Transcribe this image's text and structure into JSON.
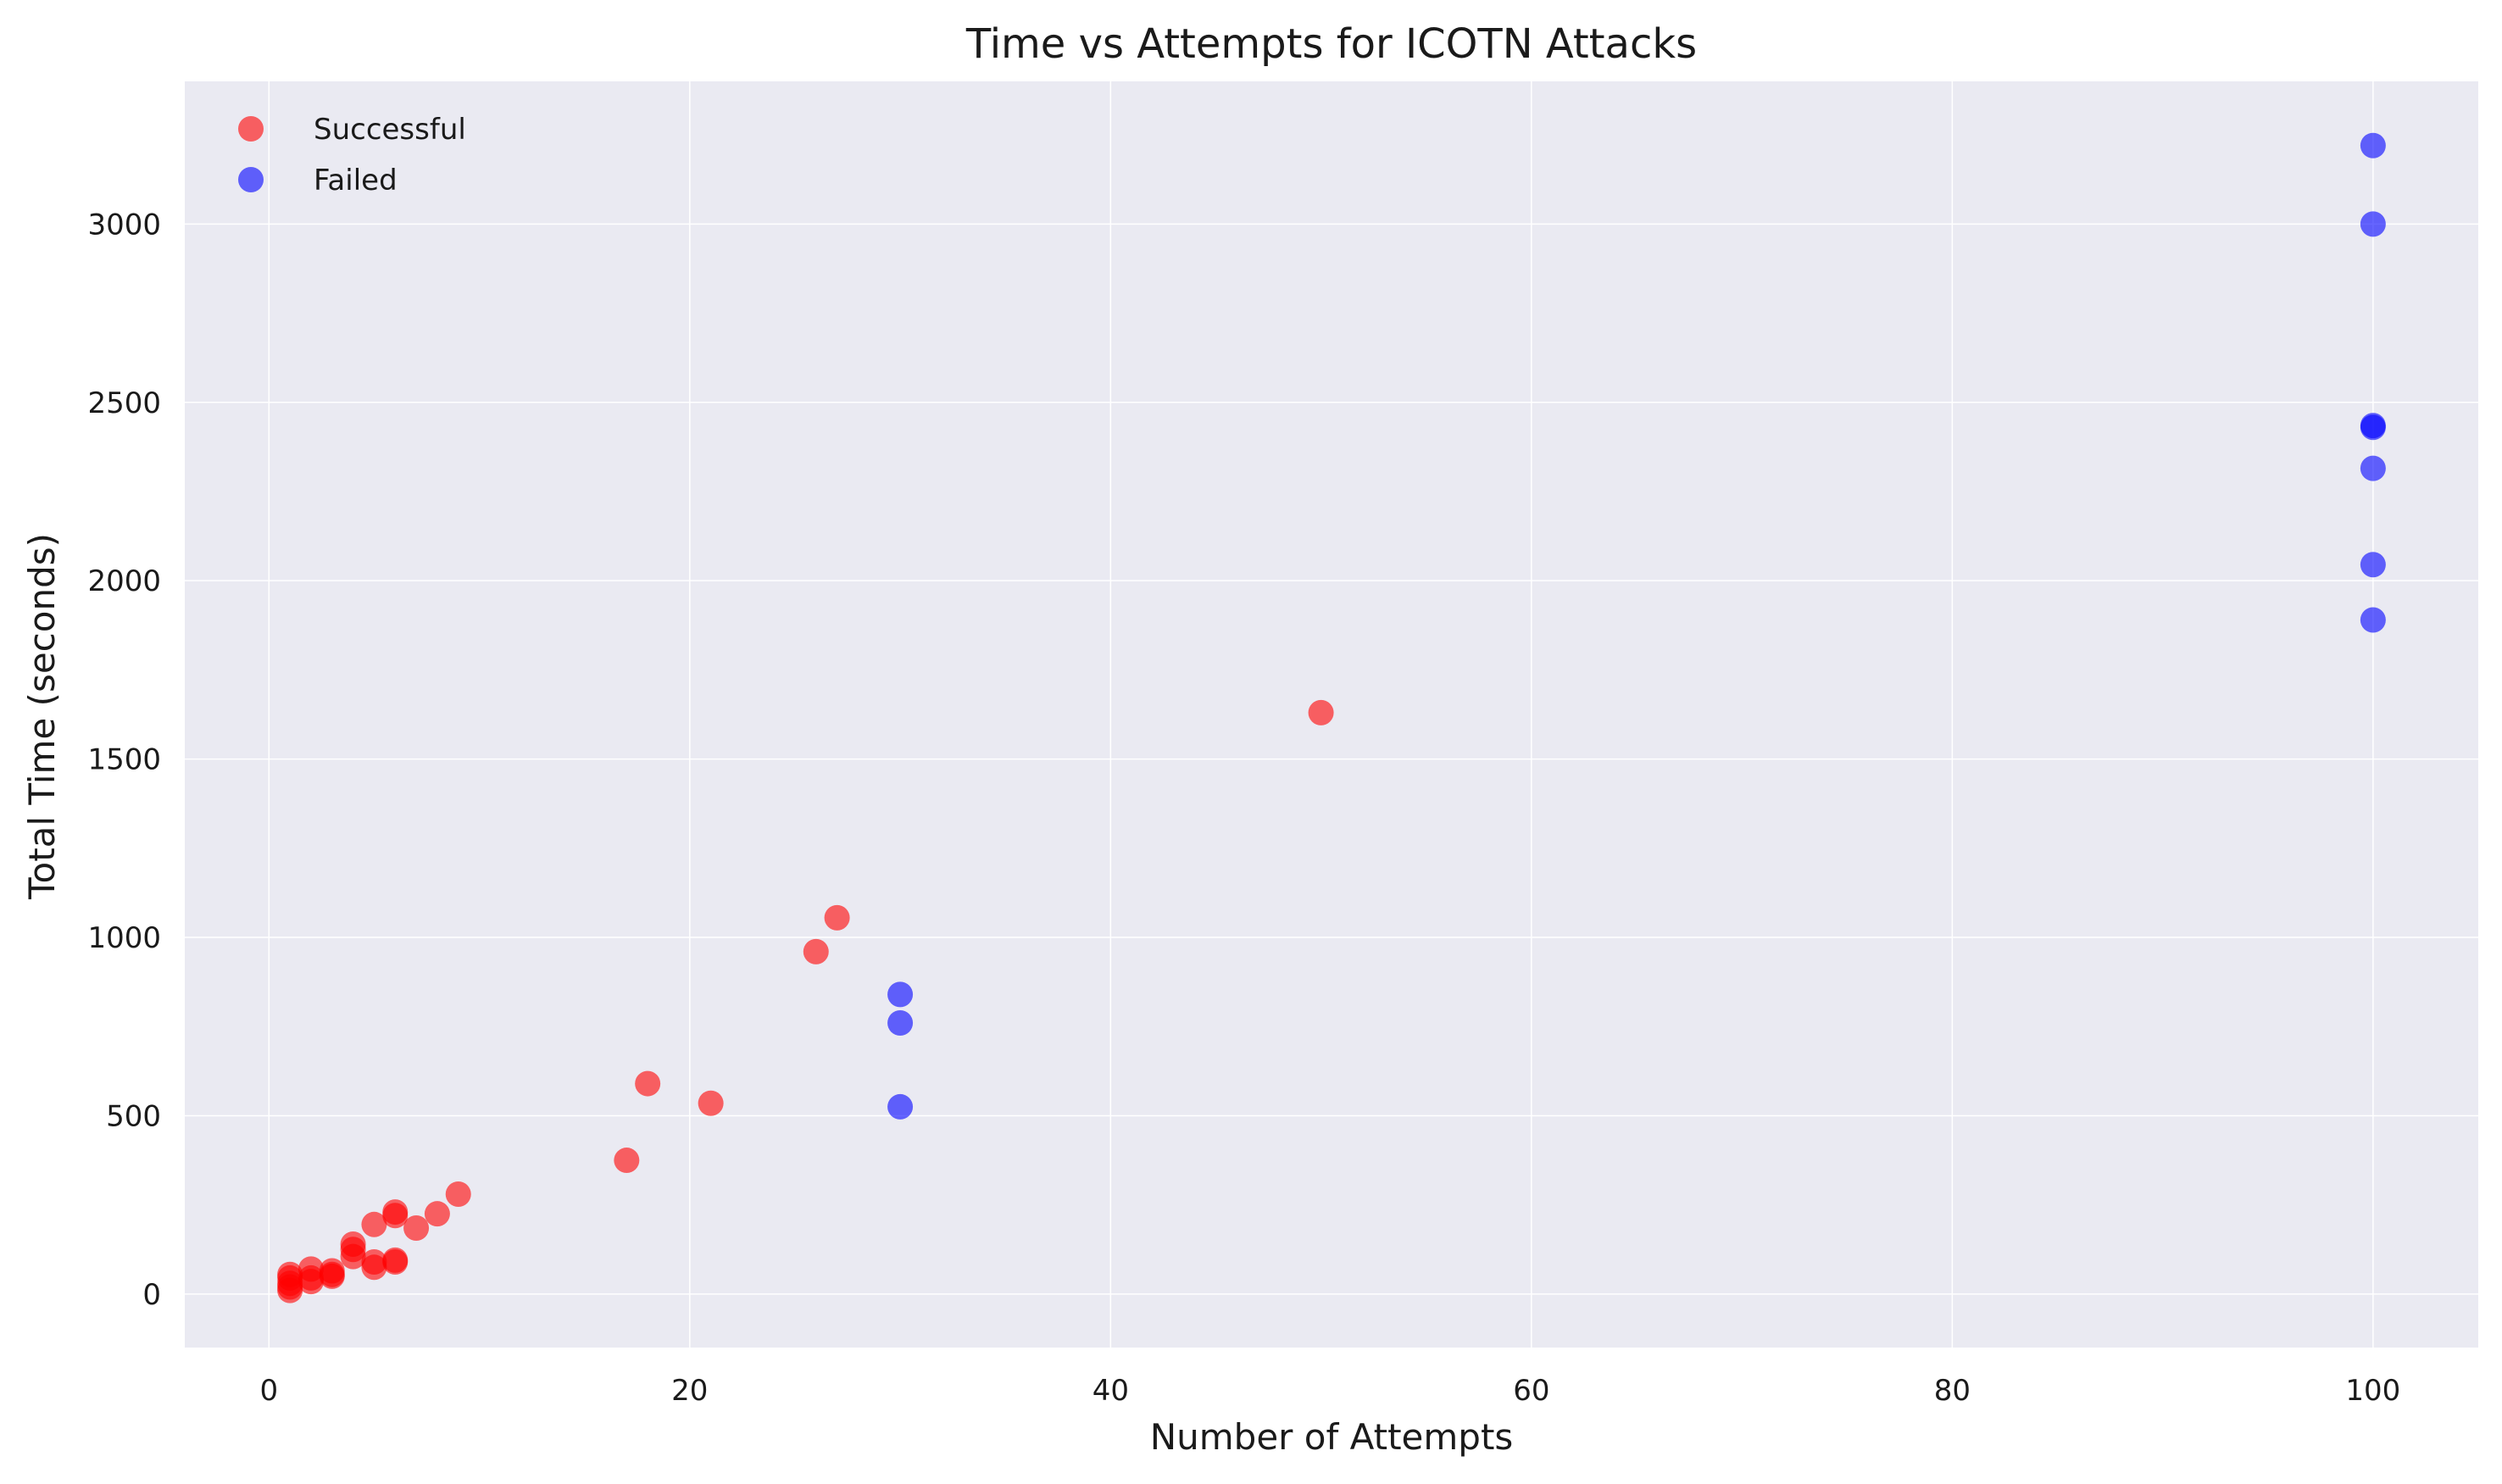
{
  "chart_data": {
    "type": "scatter",
    "title": "Time vs Attempts for ICOTN Attacks",
    "xlabel": "Number of Attempts",
    "ylabel": "Total Time (seconds)",
    "xlim": [
      -4,
      105
    ],
    "ylim": [
      -150,
      3400
    ],
    "xticks": [
      0,
      20,
      40,
      60,
      80,
      100
    ],
    "yticks": [
      0,
      500,
      1000,
      1500,
      2000,
      2500,
      3000
    ],
    "grid": true,
    "legend_position": "top-left",
    "background": "#eaeaf2",
    "series": [
      {
        "name": "Successful",
        "color": "#ff0000",
        "points": [
          [
            1,
            10
          ],
          [
            1,
            20
          ],
          [
            1,
            30
          ],
          [
            1,
            45
          ],
          [
            1,
            55
          ],
          [
            2,
            35
          ],
          [
            2,
            45
          ],
          [
            2,
            70
          ],
          [
            3,
            50
          ],
          [
            3,
            55
          ],
          [
            3,
            65
          ],
          [
            4,
            105
          ],
          [
            4,
            125
          ],
          [
            4,
            140
          ],
          [
            5,
            75
          ],
          [
            5,
            90
          ],
          [
            5,
            195
          ],
          [
            6,
            90
          ],
          [
            6,
            95
          ],
          [
            6,
            220
          ],
          [
            6,
            230
          ],
          [
            7,
            185
          ],
          [
            8,
            225
          ],
          [
            9,
            280
          ],
          [
            17,
            375
          ],
          [
            18,
            590
          ],
          [
            21,
            535
          ],
          [
            26,
            960
          ],
          [
            27,
            1055
          ],
          [
            50,
            1630
          ]
        ]
      },
      {
        "name": "Failed",
        "color": "#0000ff",
        "points": [
          [
            30,
            525
          ],
          [
            30,
            760
          ],
          [
            30,
            840
          ],
          [
            100,
            1890
          ],
          [
            100,
            2045
          ],
          [
            100,
            2315
          ],
          [
            100,
            2430
          ],
          [
            100,
            2435
          ],
          [
            100,
            3000
          ],
          [
            100,
            3220
          ]
        ]
      }
    ]
  }
}
